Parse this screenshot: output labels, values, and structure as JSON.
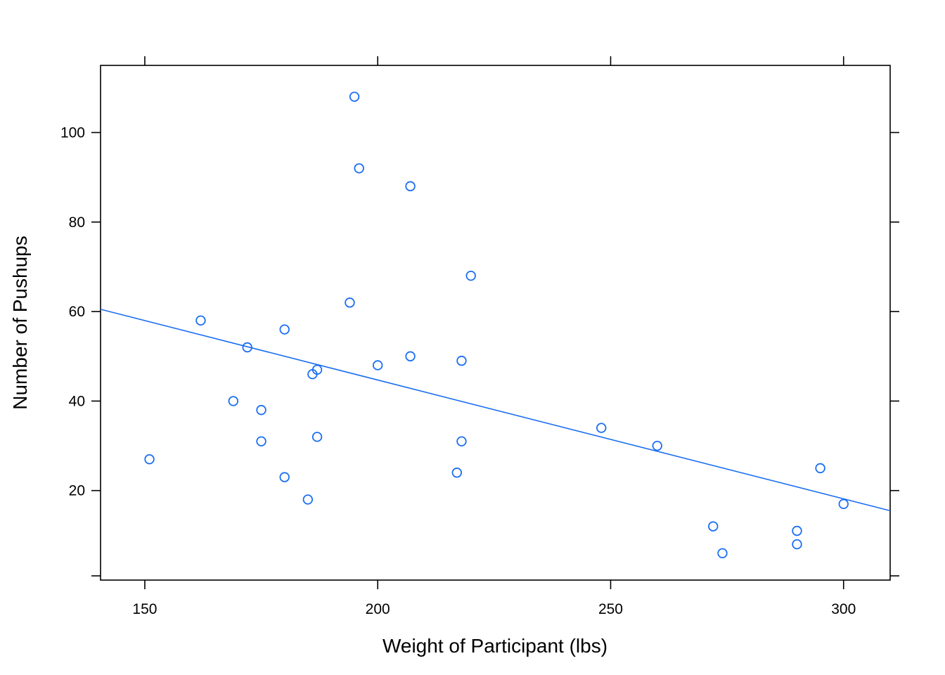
{
  "chart_data": {
    "type": "scatter",
    "title": "",
    "xlabel": "Weight of Participant (lbs)",
    "ylabel": "Number of Pushups",
    "xlim": [
      140.5,
      310
    ],
    "ylim": [
      0,
      115
    ],
    "x_ticks": [
      150,
      200,
      250,
      300
    ],
    "y_ticks": [
      20,
      40,
      60,
      80,
      100
    ],
    "y_extra_ticks": [
      0
    ],
    "grid": false,
    "legend": "none",
    "color": "#1a6ef2",
    "points": [
      {
        "x": 195,
        "y": 108
      },
      {
        "x": 196,
        "y": 92
      },
      {
        "x": 207,
        "y": 88
      },
      {
        "x": 220,
        "y": 68
      },
      {
        "x": 194,
        "y": 62
      },
      {
        "x": 162,
        "y": 58
      },
      {
        "x": 180,
        "y": 56
      },
      {
        "x": 172,
        "y": 52
      },
      {
        "x": 207,
        "y": 50
      },
      {
        "x": 218,
        "y": 49
      },
      {
        "x": 200,
        "y": 48
      },
      {
        "x": 187,
        "y": 47
      },
      {
        "x": 186,
        "y": 46
      },
      {
        "x": 169,
        "y": 40
      },
      {
        "x": 175,
        "y": 38
      },
      {
        "x": 248,
        "y": 34
      },
      {
        "x": 187,
        "y": 32
      },
      {
        "x": 175,
        "y": 31
      },
      {
        "x": 218,
        "y": 31
      },
      {
        "x": 260,
        "y": 30
      },
      {
        "x": 151,
        "y": 27
      },
      {
        "x": 295,
        "y": 25
      },
      {
        "x": 217,
        "y": 24
      },
      {
        "x": 180,
        "y": 23
      },
      {
        "x": 185,
        "y": 18
      },
      {
        "x": 300,
        "y": 17
      },
      {
        "x": 272,
        "y": 12
      },
      {
        "x": 290,
        "y": 11
      },
      {
        "x": 290,
        "y": 8
      },
      {
        "x": 274,
        "y": 6
      }
    ],
    "fit_line": {
      "x": [
        140.5,
        310
      ],
      "y": [
        60.5,
        15.5
      ]
    }
  }
}
